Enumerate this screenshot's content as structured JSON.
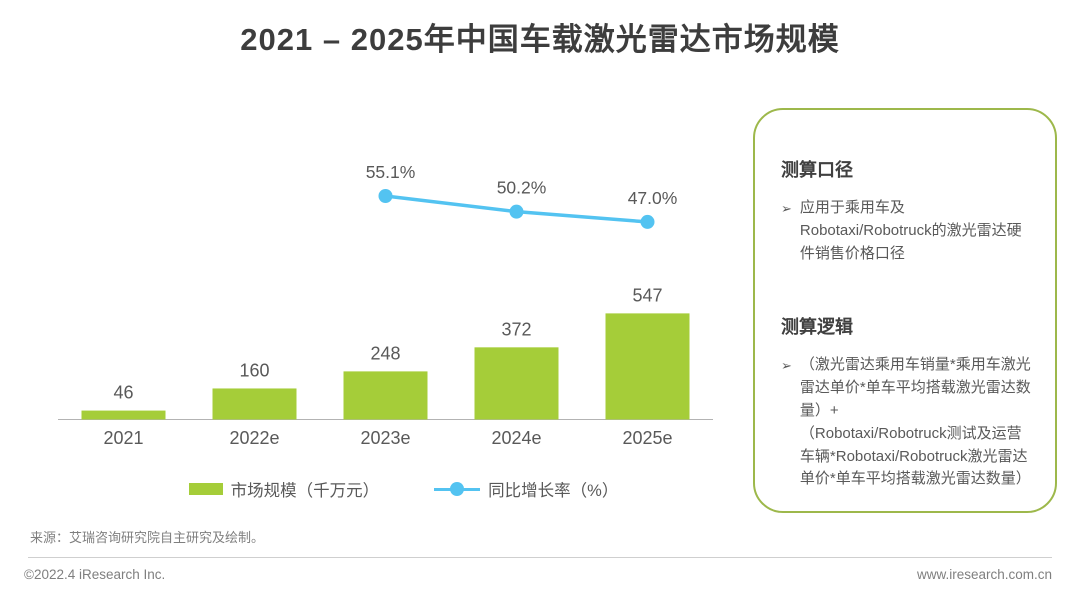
{
  "title": "2021 – 2025年中国车载激光雷达市场规模",
  "chart_data": {
    "type": "combo",
    "title": "2021 – 2025年中国车载激光雷达市场规模",
    "categories": [
      "2021",
      "2022e",
      "2023e",
      "2024e",
      "2025e"
    ],
    "series": [
      {
        "name": "市场规模（千万元）",
        "type": "bar",
        "values": [
          46,
          160,
          248,
          372,
          547
        ],
        "data_labels": [
          "46",
          "160",
          "248",
          "372",
          "547"
        ],
        "color": "#a5cd39"
      },
      {
        "name": "同比增长率（%）",
        "type": "line",
        "values": [
          null,
          null,
          55.1,
          50.2,
          47.0
        ],
        "data_labels": [
          null,
          null,
          "55.1%",
          "50.2%",
          "47.0%"
        ],
        "color": "#53c3f1"
      }
    ],
    "xlabel": "",
    "ylabel": "",
    "grid": false,
    "legend_position": "bottom",
    "ylim_bar": [
      0,
      1390
    ],
    "note": "growth-rate line plotted only for 2023e-2025e"
  },
  "legend": {
    "items": [
      {
        "label": "市场规模（千万元）",
        "marker": "bar"
      },
      {
        "label": "同比增长率（%）",
        "marker": "line"
      }
    ]
  },
  "panel": {
    "sections": [
      {
        "heading": "测算口径",
        "bullet_glyph": "➢",
        "text": "应用于乘用车及Robotaxi/Robotruck的激光雷达硬件销售价格口径"
      },
      {
        "heading": "测算逻辑",
        "bullet_glyph": "➢",
        "text": "（激光雷达乘用车销量*乘用车激光雷达单价*单车平均搭载激光雷达数量）+\n（Robotaxi/Robotruck测试及运营车辆*Robotaxi/Robotruck激光雷达单价*单车平均搭载激光雷达数量）"
      }
    ]
  },
  "source_note": "来源：艾瑞咨询研究院自主研究及绘制。",
  "footer": {
    "left": "©2022.4 iResearch Inc.",
    "right": "www.iresearch.com.cn"
  },
  "colors": {
    "bar_green": "#a5cd39",
    "line_blue": "#53c3f1",
    "panel_border": "#9db84b",
    "axis_gray": "#b3b3b3",
    "label_gray": "#595959",
    "title_gray": "#3d3d3d"
  }
}
